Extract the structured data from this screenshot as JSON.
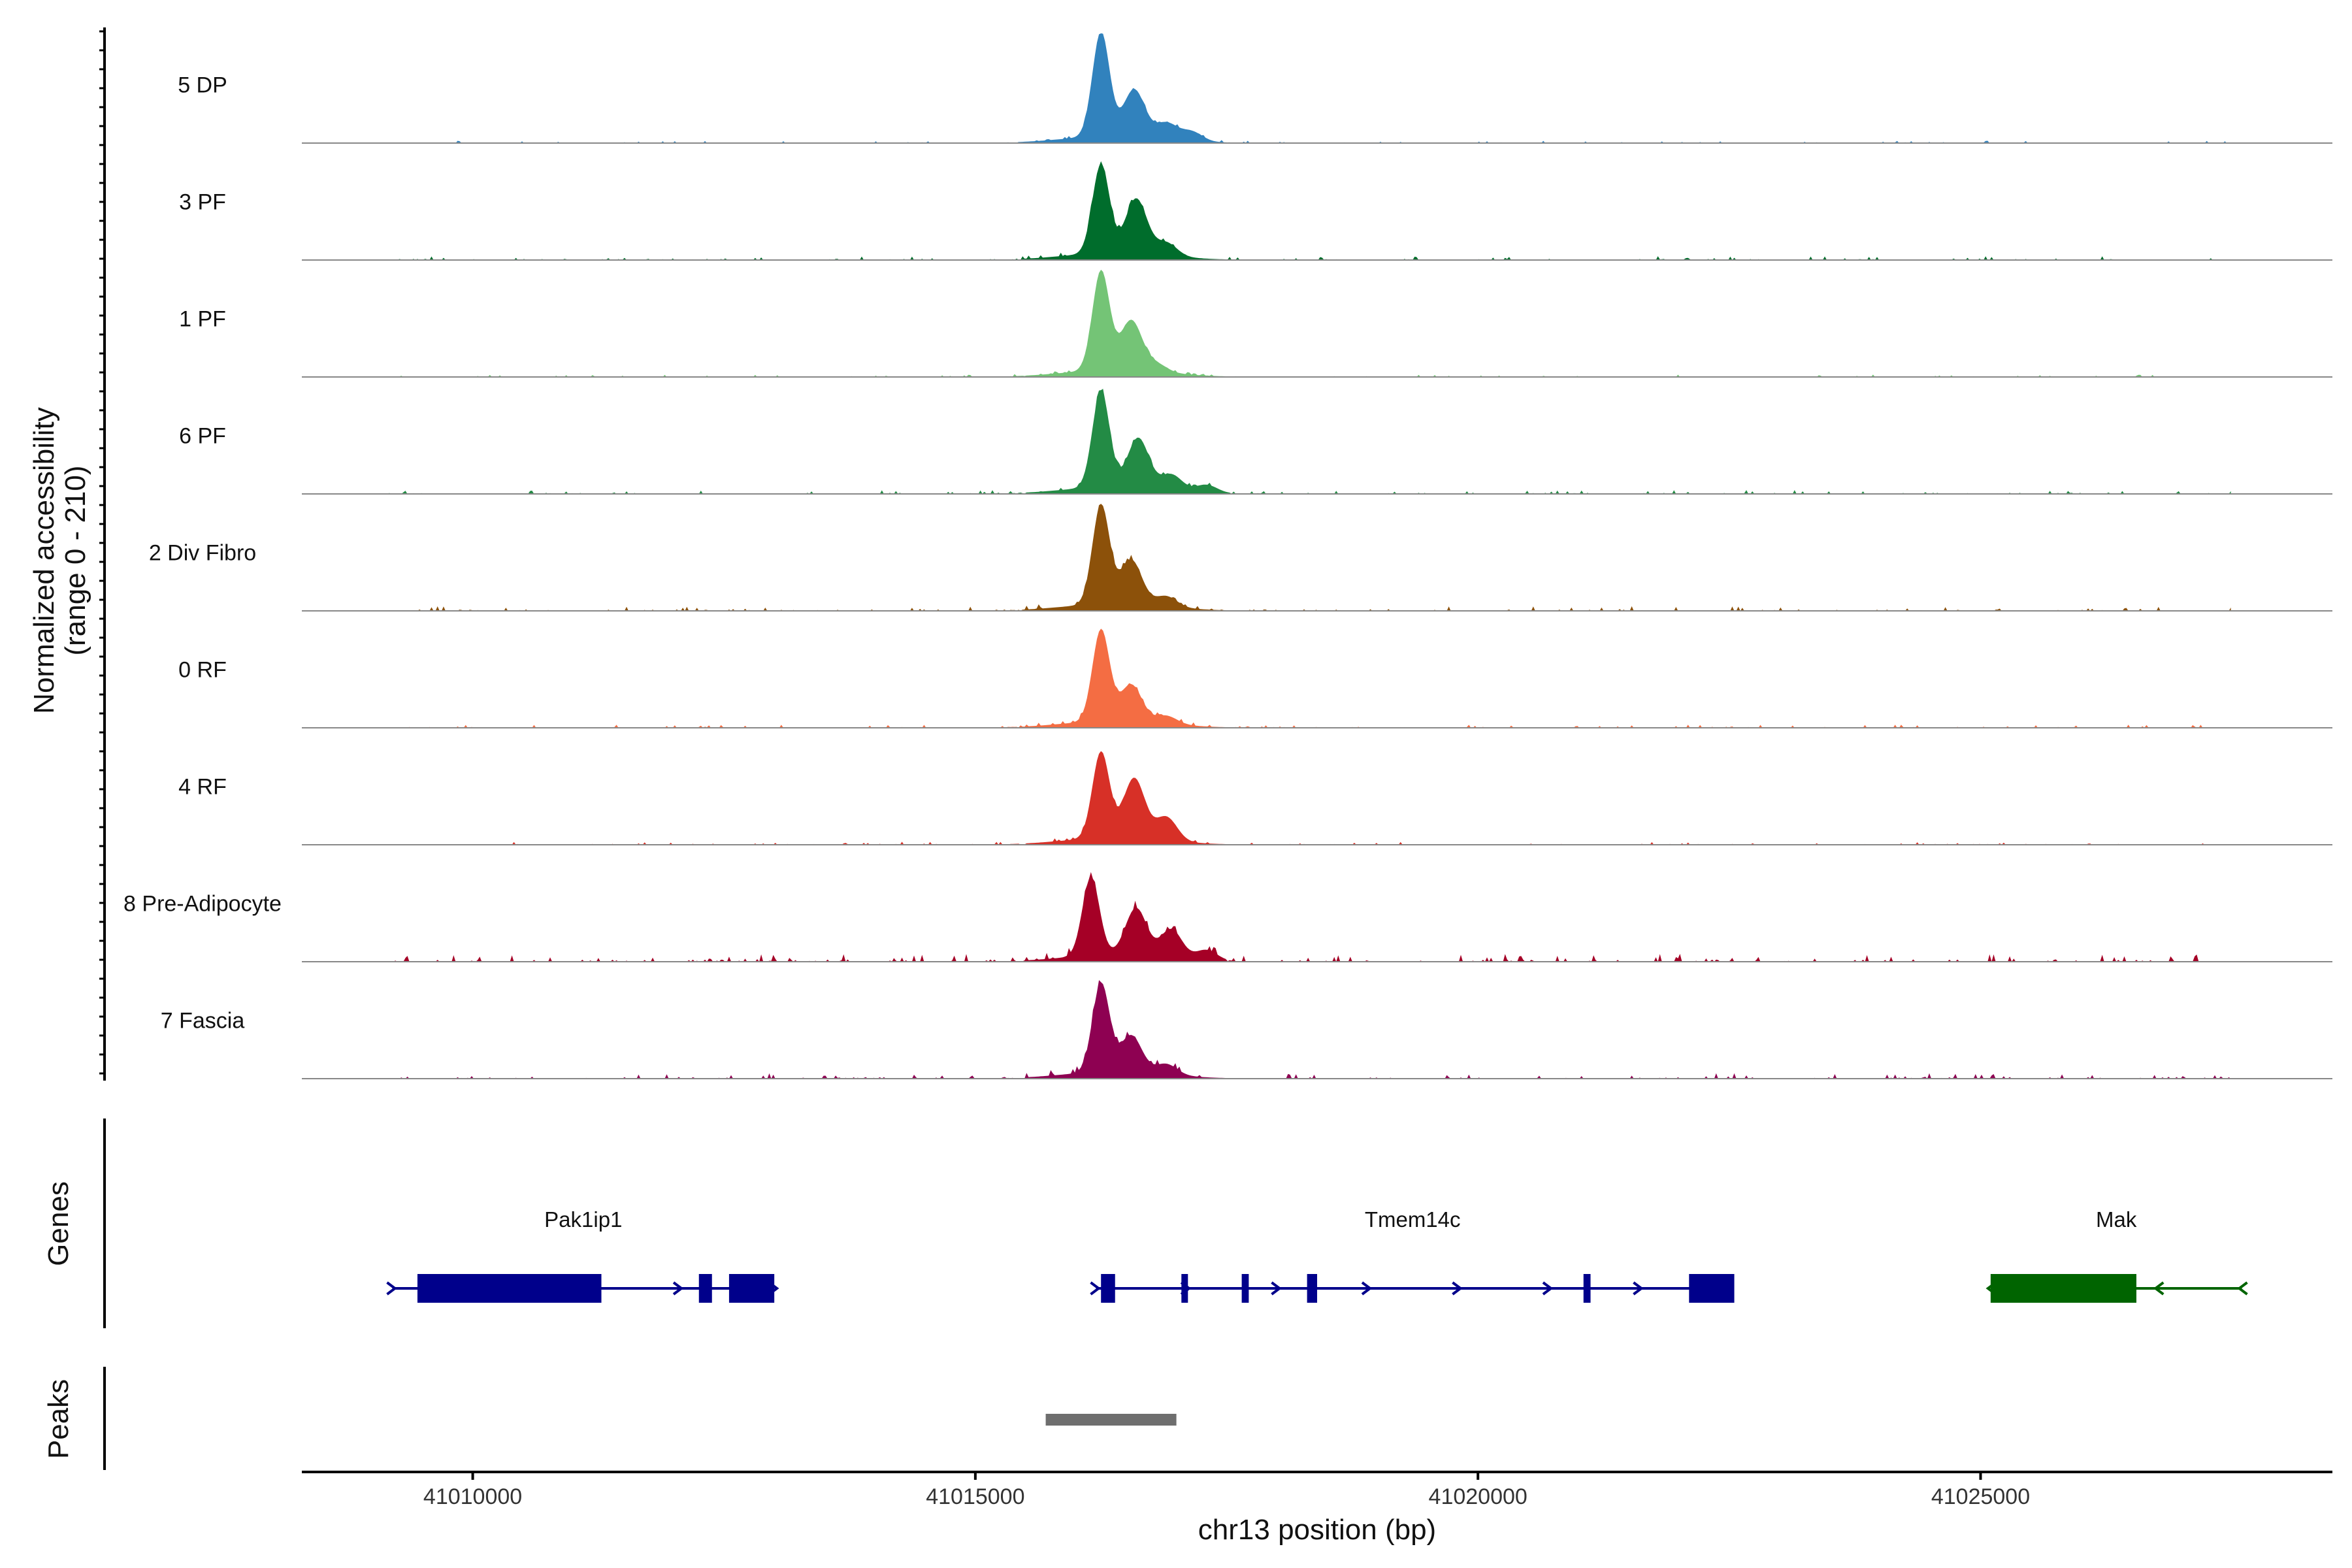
{
  "chart_data": {
    "type": "coverage",
    "ylabel_line1": "Normalized accessibility",
    "ylabel_line2": "(range 0 - 210)",
    "xlabel": "chr13 position (bp)",
    "xlim": [
      41008300,
      41028500
    ],
    "ylim": [
      0,
      210
    ],
    "x_ticks": [
      41010000,
      41015000,
      41020000,
      41025000
    ],
    "tracks": [
      {
        "name": "5 DP",
        "color": "#3182bd",
        "peaks": [
          [
            41016250,
            200
          ],
          [
            41016580,
            90
          ],
          [
            41016900,
            30
          ],
          [
            41017150,
            18
          ]
        ],
        "bg": 3
      },
      {
        "name": "3 PF",
        "color": "#006d2c",
        "peaks": [
          [
            41016250,
            170
          ],
          [
            41016600,
            105
          ],
          [
            41016900,
            25
          ]
        ],
        "bg": 5
      },
      {
        "name": "1 PF",
        "color": "#74c476",
        "peaks": [
          [
            41016250,
            190
          ],
          [
            41016550,
            95
          ],
          [
            41016800,
            15
          ]
        ],
        "bg": 3
      },
      {
        "name": "6 PF",
        "color": "#238b45",
        "peaks": [
          [
            41016250,
            185
          ],
          [
            41016620,
            95
          ],
          [
            41016950,
            30
          ],
          [
            41017300,
            15
          ]
        ],
        "bg": 5
      },
      {
        "name": "2 Div Fibro",
        "color": "#8c510a",
        "peaks": [
          [
            41016250,
            190
          ],
          [
            41016550,
            85
          ],
          [
            41016900,
            20
          ]
        ],
        "bg": 6
      },
      {
        "name": "0 RF",
        "color": "#f46d43",
        "peaks": [
          [
            41016250,
            175
          ],
          [
            41016550,
            70
          ],
          [
            41016900,
            15
          ]
        ],
        "bg": 4
      },
      {
        "name": "4 RF",
        "color": "#d73027",
        "peaks": [
          [
            41016250,
            165
          ],
          [
            41016580,
            115
          ],
          [
            41016900,
            45
          ]
        ],
        "bg": 4
      },
      {
        "name": "8 Pre-Adipocyte",
        "color": "#a50026",
        "peaks": [
          [
            41016150,
            150
          ],
          [
            41016600,
            90
          ],
          [
            41016950,
            55
          ],
          [
            41017300,
            20
          ]
        ],
        "bg": 10
      },
      {
        "name": "7 Fascia",
        "color": "#8e0152",
        "peaks": [
          [
            41016250,
            170
          ],
          [
            41016550,
            70
          ],
          [
            41016900,
            20
          ]
        ],
        "bg": 7
      }
    ],
    "genes": [
      {
        "name": "Pak1ip1",
        "color": "#00008b",
        "strand": "+",
        "start": 41009200,
        "end": 41013000,
        "exons": [
          [
            41009450,
            41011280
          ],
          [
            41012250,
            41012380
          ],
          [
            41012550,
            41013000
          ]
        ]
      },
      {
        "name": "Tmem14c",
        "color": "#00008b",
        "strand": "+",
        "start": 41016200,
        "end": 41022500,
        "exons": [
          [
            41016250,
            41016390
          ],
          [
            41017050,
            41017100
          ],
          [
            41017650,
            41017720
          ],
          [
            41018300,
            41018400
          ],
          [
            41021050,
            41021120
          ],
          [
            41022100,
            41022550
          ]
        ]
      },
      {
        "name": "Mak",
        "color": "#006400",
        "strand": "-",
        "start": 41025100,
        "end": 41027600,
        "exons": [
          [
            41025100,
            41026550
          ]
        ]
      }
    ],
    "peaks_track": [
      [
        41015700,
        41017000
      ]
    ],
    "gene_panel_label": "Genes",
    "peak_panel_label": "Peaks",
    "peak_color": "#6e6e6e"
  }
}
